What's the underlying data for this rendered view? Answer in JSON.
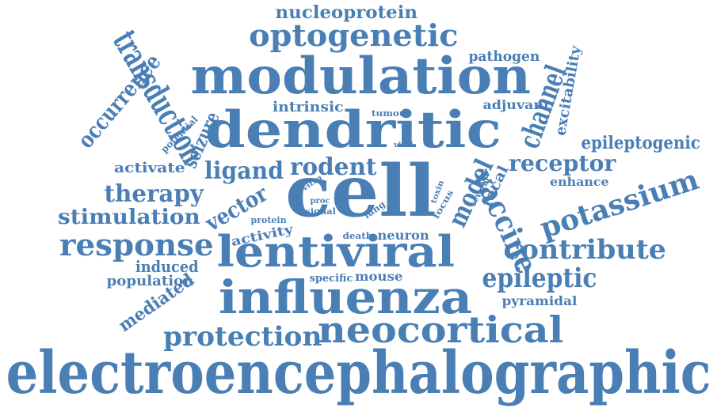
{
  "color": "#4a7fb5",
  "words": [
    "electroencephalographic",
    "modulation",
    "dendritic",
    "cell",
    "influenza",
    "lentiviral",
    "neocortical",
    "transduction",
    "optogenetic",
    "response",
    "protection",
    "vaccine",
    "potassium",
    "contribute",
    "epileptic",
    "channel",
    "model",
    "ligand",
    "rodent",
    "therapy",
    "stimulation",
    "receptor",
    "occurrence",
    "epileptogenic",
    "vector",
    "seizure",
    "nucleoprotein",
    "mediated",
    "excitability",
    "pathogen",
    "intrinsic",
    "induced",
    "population",
    "activate",
    "focal",
    "pyramidal",
    "activity",
    "adjuvant",
    "neuron",
    "mouse",
    "enhance",
    "tumour",
    "potential",
    "specific",
    "death",
    "protein",
    "signal",
    "lung",
    "focus",
    "several",
    "proc",
    "toxin",
    "vitro",
    "viral"
  ]
}
